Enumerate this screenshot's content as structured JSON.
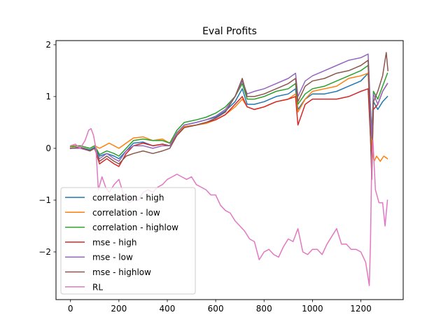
{
  "chart_data": {
    "type": "line",
    "title": "Eval Profits",
    "xlabel": "",
    "ylabel": "",
    "xlim": [
      -60,
      1375
    ],
    "ylim": [
      -2.92,
      2.08
    ],
    "xticks": [
      0,
      200,
      400,
      600,
      800,
      1000,
      1200
    ],
    "xtick_labels": [
      "0",
      "200",
      "400",
      "600",
      "800",
      "1000",
      "1200"
    ],
    "yticks": [
      -2,
      -1,
      0,
      1,
      2
    ],
    "ytick_labels": [
      "−2",
      "−1",
      "0",
      "1",
      "2"
    ],
    "grid": false,
    "legend_position": "lower-left",
    "series": [
      {
        "name": "correlation - high",
        "color": "#1f77b4",
        "x": [
          0,
          40,
          80,
          100,
          120,
          150,
          180,
          200,
          230,
          260,
          300,
          340,
          380,
          410,
          440,
          470,
          520,
          560,
          600,
          640,
          680,
          710,
          730,
          760,
          800,
          850,
          900,
          930,
          940,
          970,
          1000,
          1050,
          1100,
          1150,
          1200,
          1230,
          1245,
          1252,
          1270,
          1290,
          1310
        ],
        "y": [
          0.0,
          0.02,
          -0.03,
          0.02,
          -0.15,
          -0.1,
          -0.15,
          -0.2,
          -0.05,
          0.1,
          0.12,
          0.05,
          0.08,
          0.05,
          0.3,
          0.45,
          0.5,
          0.55,
          0.6,
          0.72,
          0.9,
          1.15,
          0.85,
          0.85,
          0.9,
          1.0,
          1.05,
          1.15,
          0.75,
          0.95,
          1.05,
          1.05,
          1.1,
          1.2,
          1.3,
          1.45,
          0.2,
          0.9,
          0.75,
          0.9,
          1.0
        ]
      },
      {
        "name": "correlation - low",
        "color": "#ff7f0e",
        "x": [
          0,
          40,
          80,
          100,
          120,
          140,
          160,
          180,
          200,
          230,
          260,
          300,
          340,
          380,
          410,
          440,
          470,
          520,
          560,
          600,
          640,
          680,
          710,
          730,
          760,
          800,
          850,
          900,
          930,
          940,
          970,
          1000,
          1050,
          1100,
          1150,
          1200,
          1230,
          1245,
          1255,
          1265,
          1280,
          1295,
          1310
        ],
        "y": [
          0.05,
          0.05,
          0.0,
          0.05,
          0.0,
          0.05,
          0.1,
          0.05,
          0.0,
          0.1,
          0.2,
          0.22,
          0.15,
          0.18,
          0.1,
          0.28,
          0.42,
          0.45,
          0.48,
          0.55,
          0.65,
          0.8,
          0.95,
          0.8,
          0.75,
          0.8,
          0.9,
          0.95,
          1.05,
          0.7,
          0.95,
          1.1,
          1.15,
          1.2,
          1.35,
          1.4,
          1.45,
          0.0,
          -0.25,
          -0.15,
          -0.25,
          -0.15,
          -0.2
        ]
      },
      {
        "name": "correlation - highlow",
        "color": "#2ca02c",
        "x": [
          0,
          40,
          80,
          100,
          120,
          150,
          180,
          200,
          230,
          260,
          300,
          340,
          380,
          410,
          440,
          470,
          520,
          560,
          600,
          640,
          680,
          710,
          730,
          760,
          800,
          850,
          900,
          930,
          940,
          970,
          1000,
          1050,
          1100,
          1150,
          1200,
          1230,
          1245,
          1252,
          1270,
          1290,
          1310
        ],
        "y": [
          0.03,
          0.05,
          0.0,
          0.05,
          -0.12,
          -0.05,
          -0.1,
          -0.15,
          0.0,
          0.15,
          0.18,
          0.15,
          0.15,
          0.1,
          0.35,
          0.5,
          0.55,
          0.6,
          0.68,
          0.8,
          1.0,
          1.25,
          0.95,
          0.95,
          1.0,
          1.1,
          1.15,
          1.25,
          0.85,
          1.05,
          1.15,
          1.2,
          1.3,
          1.4,
          1.5,
          1.6,
          0.3,
          1.1,
          0.95,
          1.2,
          1.45
        ]
      },
      {
        "name": "mse - high",
        "color": "#d62728",
        "x": [
          0,
          40,
          80,
          100,
          120,
          150,
          180,
          200,
          230,
          260,
          300,
          340,
          380,
          410,
          440,
          470,
          520,
          560,
          600,
          640,
          680,
          710,
          730,
          760,
          800,
          850,
          900,
          930,
          940,
          970,
          1000,
          1050,
          1100,
          1150,
          1200,
          1230,
          1245,
          1252,
          1270,
          1290,
          1310
        ],
        "y": [
          0.0,
          0.02,
          -0.05,
          0.0,
          -0.3,
          -0.2,
          -0.3,
          -0.35,
          -0.1,
          0.05,
          0.1,
          0.05,
          0.08,
          0.05,
          0.25,
          0.4,
          0.45,
          0.5,
          0.55,
          0.65,
          0.85,
          1.0,
          0.8,
          0.75,
          0.8,
          0.9,
          0.95,
          1.0,
          0.45,
          0.85,
          0.95,
          0.95,
          0.95,
          1.0,
          1.1,
          1.15,
          -0.3,
          0.75,
          0.85,
          1.1,
          1.25
        ]
      },
      {
        "name": "mse - low",
        "color": "#9467bd",
        "x": [
          0,
          40,
          80,
          100,
          120,
          150,
          180,
          200,
          230,
          260,
          300,
          340,
          380,
          410,
          440,
          470,
          520,
          560,
          600,
          640,
          680,
          710,
          730,
          760,
          800,
          850,
          900,
          930,
          940,
          970,
          1000,
          1050,
          1100,
          1150,
          1200,
          1230,
          1245,
          1252,
          1270,
          1290,
          1310
        ],
        "y": [
          0.0,
          0.0,
          -0.05,
          0.0,
          -0.2,
          -0.1,
          -0.2,
          -0.25,
          -0.05,
          0.05,
          0.05,
          0.0,
          0.05,
          0.05,
          0.3,
          0.45,
          0.5,
          0.55,
          0.62,
          0.75,
          1.0,
          1.3,
          1.05,
          1.1,
          1.15,
          1.25,
          1.35,
          1.45,
          1.0,
          1.3,
          1.4,
          1.5,
          1.6,
          1.7,
          1.75,
          1.82,
          0.2,
          1.05,
          0.85,
          1.1,
          1.25
        ]
      },
      {
        "name": "mse - highlow",
        "color": "#8c564b",
        "x": [
          0,
          40,
          80,
          100,
          120,
          150,
          180,
          200,
          230,
          260,
          300,
          340,
          380,
          410,
          440,
          470,
          520,
          560,
          600,
          640,
          680,
          710,
          730,
          760,
          800,
          850,
          900,
          930,
          940,
          970,
          1000,
          1050,
          1100,
          1150,
          1200,
          1230,
          1245,
          1252,
          1270,
          1290,
          1305,
          1312
        ],
        "y": [
          0.0,
          0.02,
          -0.05,
          0.0,
          -0.25,
          -0.15,
          -0.25,
          -0.3,
          -0.15,
          -0.1,
          -0.05,
          -0.1,
          -0.05,
          0.0,
          0.25,
          0.4,
          0.45,
          0.5,
          0.58,
          0.7,
          1.0,
          1.35,
          1.0,
          1.0,
          1.05,
          1.15,
          1.25,
          1.35,
          0.9,
          1.2,
          1.3,
          1.35,
          1.45,
          1.5,
          1.6,
          1.7,
          -0.6,
          0.9,
          1.1,
          1.4,
          1.85,
          1.5
        ]
      },
      {
        "name": "RL",
        "color": "#e377c2",
        "x": [
          0,
          20,
          40,
          60,
          75,
          85,
          95,
          105,
          115,
          130,
          145,
          160,
          180,
          200,
          220,
          240,
          260,
          280,
          300,
          320,
          340,
          360,
          380,
          400,
          420,
          440,
          460,
          480,
          500,
          520,
          540,
          560,
          580,
          600,
          620,
          640,
          660,
          680,
          700,
          720,
          740,
          760,
          780,
          800,
          820,
          840,
          860,
          880,
          900,
          920,
          940,
          960,
          980,
          1000,
          1020,
          1040,
          1060,
          1080,
          1100,
          1120,
          1140,
          1160,
          1180,
          1200,
          1220,
          1235,
          1240,
          1245,
          1250,
          1260,
          1275,
          1290,
          1300,
          1310
        ],
        "y": [
          0.05,
          0.08,
          0.0,
          0.15,
          0.35,
          0.38,
          0.25,
          0.0,
          -0.8,
          -0.55,
          -0.75,
          -0.85,
          -0.7,
          -0.6,
          -0.9,
          -1.05,
          -1.0,
          -1.0,
          -0.85,
          -0.8,
          -0.85,
          -0.75,
          -0.7,
          -0.6,
          -0.55,
          -0.5,
          -0.55,
          -0.6,
          -0.55,
          -0.7,
          -0.75,
          -0.8,
          -0.9,
          -0.9,
          -1.1,
          -1.2,
          -1.25,
          -1.4,
          -1.5,
          -1.6,
          -1.75,
          -1.8,
          -2.15,
          -2.0,
          -1.95,
          -2.05,
          -2.1,
          -1.9,
          -1.75,
          -1.8,
          -1.55,
          -2.0,
          -2.05,
          -1.95,
          -1.95,
          -2.05,
          -1.85,
          -1.7,
          -1.55,
          -1.85,
          -1.85,
          -1.95,
          -1.95,
          -2.0,
          -2.2,
          -2.65,
          -1.8,
          -0.2,
          0.15,
          -0.8,
          -1.05,
          -1.05,
          -1.5,
          -1.0
        ]
      }
    ]
  }
}
